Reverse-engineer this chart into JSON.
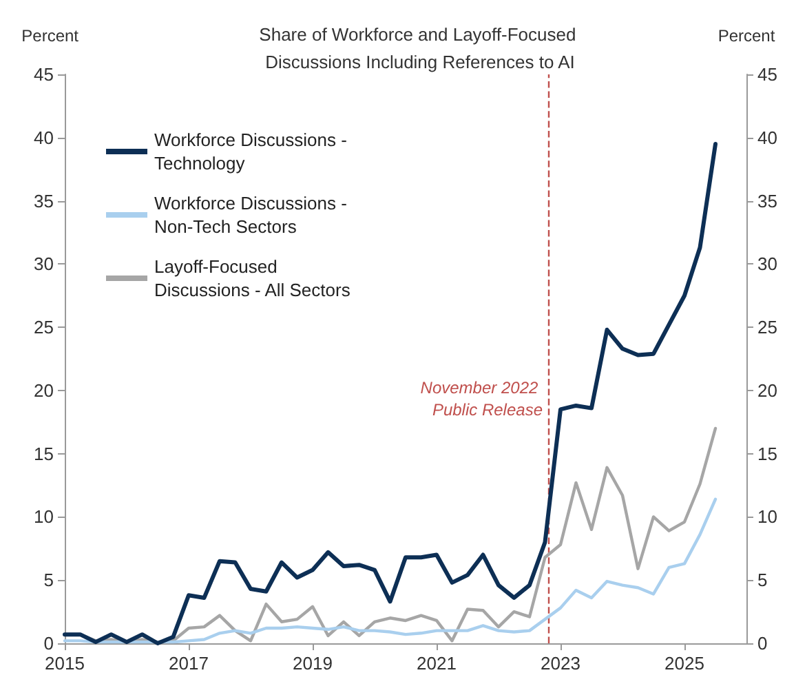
{
  "chart_data": {
    "type": "line",
    "title": "Share of Workforce and Layoff-Focused Discussions Including References to AI",
    "ylabel": "Percent",
    "y2label": "Percent",
    "x": [
      2015,
      2015.25,
      2015.5,
      2015.75,
      2016,
      2016.25,
      2016.5,
      2016.75,
      2017,
      2017.25,
      2017.5,
      2017.75,
      2018,
      2018.25,
      2018.5,
      2018.75,
      2019,
      2019.25,
      2019.5,
      2019.75,
      2020,
      2020.25,
      2020.5,
      2020.75,
      2021,
      2021.25,
      2021.5,
      2021.75,
      2022,
      2022.25,
      2022.5,
      2022.75,
      2023,
      2023.25,
      2023.5,
      2023.75,
      2024,
      2024.25,
      2024.5,
      2024.75,
      2025,
      2025.25,
      2025.5
    ],
    "series": [
      {
        "name": "Workforce Discussions - Technology",
        "color": "#0d2f55",
        "values": [
          0.7,
          0.7,
          0.1,
          0.7,
          0.1,
          0.7,
          0.0,
          0.5,
          3.8,
          3.6,
          6.5,
          6.4,
          4.3,
          4.1,
          6.4,
          5.2,
          5.8,
          7.2,
          6.1,
          6.2,
          5.8,
          3.3,
          6.8,
          6.8,
          7.0,
          4.8,
          5.4,
          7.0,
          4.6,
          3.6,
          4.6,
          8.0,
          18.5,
          18.8,
          18.6,
          24.8,
          23.3,
          22.8,
          22.9,
          25.2,
          27.5,
          31.3,
          39.5
        ]
      },
      {
        "name": "Workforce Discussions - Non-Tech Sectors",
        "color": "#a9cfee",
        "values": [
          0.2,
          0.2,
          0.1,
          0.1,
          0.1,
          0.1,
          0.1,
          0.1,
          0.2,
          0.3,
          0.8,
          1.0,
          0.8,
          1.2,
          1.2,
          1.3,
          1.2,
          1.1,
          1.3,
          1.0,
          1.0,
          0.9,
          0.7,
          0.8,
          1.0,
          1.0,
          1.0,
          1.4,
          1.0,
          0.9,
          1.0,
          1.9,
          2.8,
          4.2,
          3.6,
          4.9,
          4.6,
          4.4,
          3.9,
          6.0,
          6.3,
          8.6,
          11.4
        ]
      },
      {
        "name": "Layoff-Focused Discussions - All Sectors",
        "color": "#a6a6a6",
        "values": [
          0.7,
          0.7,
          0.2,
          0.3,
          0.1,
          0.3,
          0.1,
          0.2,
          1.2,
          1.3,
          2.2,
          1.0,
          0.2,
          3.1,
          1.7,
          1.9,
          2.9,
          0.6,
          1.7,
          0.6,
          1.7,
          2.0,
          1.8,
          2.2,
          1.8,
          0.2,
          2.7,
          2.6,
          1.3,
          2.5,
          2.1,
          6.8,
          7.8,
          12.7,
          9.0,
          13.9,
          11.7,
          5.9,
          10.0,
          8.9,
          9.6,
          12.6,
          17.0
        ]
      }
    ],
    "xlim": [
      2015,
      2026
    ],
    "xticks": [
      2015,
      2017,
      2019,
      2021,
      2023,
      2025
    ],
    "ylim": [
      0,
      45
    ],
    "yticks": [
      0,
      5,
      10,
      15,
      20,
      25,
      30,
      35,
      40,
      45
    ],
    "y2lim": [
      0,
      45
    ],
    "y2ticks": [
      0,
      5,
      10,
      15,
      20,
      25,
      30,
      35,
      40,
      45
    ],
    "ref_lines": [
      {
        "axis": "x",
        "value": 2022.8,
        "label": "November 2022 Public Release",
        "color": "#c0504d",
        "line_style": "dashed"
      }
    ],
    "legend": "top left",
    "grid": false,
    "marker": "none"
  }
}
